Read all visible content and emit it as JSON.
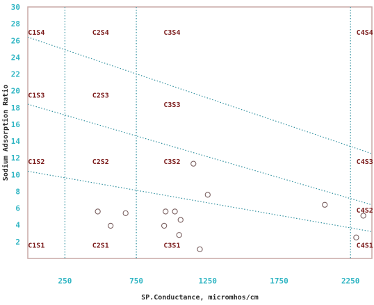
{
  "chart_data": {
    "type": "scatter",
    "title": "",
    "xlabel": "SP.Conductance, micromhos/cm",
    "ylabel": "Sodium Adsorption Ratio",
    "xlim": [
      -10,
      2400
    ],
    "ylim": [
      0,
      30
    ],
    "x_ticks": [
      250,
      750,
      1250,
      1750,
      2250
    ],
    "y_ticks": [
      2,
      4,
      6,
      8,
      10,
      12,
      14,
      16,
      18,
      20,
      22,
      24,
      26,
      28,
      30
    ],
    "x_tick_labels": [
      "250",
      "750",
      "1250",
      "1750",
      "2250"
    ],
    "y_tick_labels": [
      "2",
      "4",
      "6",
      "8",
      "10",
      "12",
      "14",
      "16",
      "18",
      "20",
      "22",
      "24",
      "26",
      "28",
      "30"
    ],
    "grid": false,
    "vertical_dividers": [
      250,
      750,
      2250
    ],
    "sodium_lines": [
      {
        "x": [
          -10,
          2400
        ],
        "y": [
          10.4,
          3.2
        ]
      },
      {
        "x": [
          -10,
          2400
        ],
        "y": [
          18.4,
          6.4
        ]
      },
      {
        "x": [
          -10,
          2400
        ],
        "y": [
          26.4,
          12.5
        ]
      }
    ],
    "zone_labels": [
      {
        "text": "C1S4",
        "x": 50,
        "y": 27
      },
      {
        "text": "C2S4",
        "x": 500,
        "y": 27
      },
      {
        "text": "C3S4",
        "x": 1000,
        "y": 27
      },
      {
        "text": "C4S4",
        "x": 2350,
        "y": 27
      },
      {
        "text": "C1S3",
        "x": 50,
        "y": 19.5
      },
      {
        "text": "C2S3",
        "x": 500,
        "y": 19.5
      },
      {
        "text": "C3S3",
        "x": 1000,
        "y": 18.4
      },
      {
        "text": "C1S2",
        "x": 50,
        "y": 11.6
      },
      {
        "text": "C2S2",
        "x": 500,
        "y": 11.6
      },
      {
        "text": "C3S2",
        "x": 1000,
        "y": 11.6
      },
      {
        "text": "C4S3",
        "x": 2350,
        "y": 11.6
      },
      {
        "text": "C4S2",
        "x": 2350,
        "y": 5.8
      },
      {
        "text": "C1S1",
        "x": 50,
        "y": 1.6
      },
      {
        "text": "C2S1",
        "x": 500,
        "y": 1.6
      },
      {
        "text": "C3S1",
        "x": 1000,
        "y": 1.6
      },
      {
        "text": "C4S1",
        "x": 2350,
        "y": 1.6
      }
    ],
    "points": [
      {
        "x": 480,
        "y": 5.6
      },
      {
        "x": 570,
        "y": 3.9
      },
      {
        "x": 675,
        "y": 5.4
      },
      {
        "x": 955,
        "y": 5.6
      },
      {
        "x": 1020,
        "y": 5.6
      },
      {
        "x": 1060,
        "y": 4.6
      },
      {
        "x": 945,
        "y": 3.9
      },
      {
        "x": 1050,
        "y": 2.8
      },
      {
        "x": 1150,
        "y": 11.3
      },
      {
        "x": 1250,
        "y": 7.6
      },
      {
        "x": 1195,
        "y": 1.1
      },
      {
        "x": 2070,
        "y": 6.4
      },
      {
        "x": 2340,
        "y": 5.1
      },
      {
        "x": 2290,
        "y": 2.5
      }
    ],
    "colors": {
      "frame": "#c9a9a6",
      "dotted_line": "#2e8f9e",
      "tick_text": "#2fb5c3",
      "zone_text": "#7a1a1a",
      "point_stroke": "#7a6060",
      "axis_text": "#2a2a2a"
    }
  }
}
